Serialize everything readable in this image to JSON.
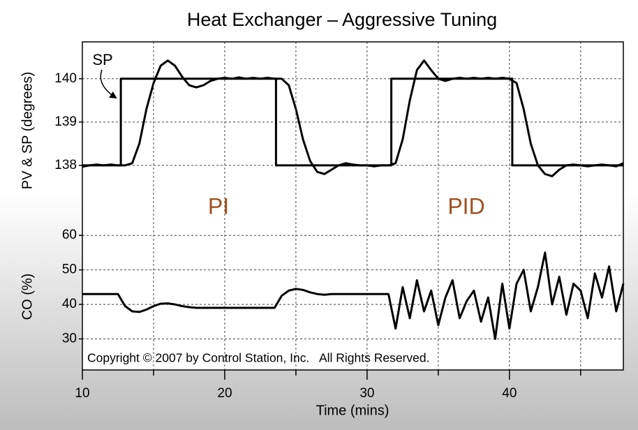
{
  "chart_data": [
    {
      "type": "line",
      "title": "Heat Exchanger – Aggressive Tuning",
      "ylabel": "PV & SP (degrees)",
      "xlim": [
        10,
        48
      ],
      "ylim": [
        137,
        140.85
      ],
      "yticks": [
        138,
        139,
        140
      ],
      "grid": true,
      "x": [
        10,
        10.5,
        11,
        11.5,
        12,
        12.5,
        13,
        13.5,
        14,
        14.5,
        15,
        15.5,
        16,
        16.5,
        17,
        17.5,
        18,
        18.5,
        19,
        19.5,
        20,
        20.5,
        21,
        21.5,
        22,
        22.5,
        23,
        23.5,
        24,
        24.5,
        25,
        25.5,
        26,
        26.5,
        27,
        27.5,
        28,
        28.5,
        29,
        29.5,
        30,
        30.5,
        31,
        31.5,
        32,
        32.5,
        33,
        33.5,
        34,
        34.5,
        35,
        35.5,
        36,
        36.5,
        37,
        37.5,
        38,
        38.5,
        39,
        39.5,
        40,
        40.5,
        41,
        41.5,
        42,
        42.5,
        43,
        43.5,
        44,
        44.5,
        45,
        45.5,
        46,
        46.5,
        47,
        47.5,
        48
      ],
      "series": [
        {
          "color": "#000000",
          "values": [
            137.97,
            138,
            138.02,
            138,
            138.02,
            138,
            138,
            138.05,
            138.5,
            139.3,
            139.9,
            140.3,
            140.42,
            140.3,
            140.05,
            139.85,
            139.8,
            139.85,
            139.95,
            140,
            140.02,
            140,
            140.03,
            140,
            140.02,
            140,
            140.02,
            140,
            140,
            139.85,
            139.3,
            138.6,
            138.1,
            137.85,
            137.8,
            137.9,
            138,
            138.05,
            138.02,
            138,
            138,
            137.98,
            138,
            138,
            138.05,
            138.6,
            139.5,
            140.2,
            140.42,
            140.2,
            140,
            139.95,
            140,
            140.02,
            140,
            140.02,
            140,
            140.02,
            140,
            140.02,
            140,
            139.9,
            139.3,
            138.5,
            138,
            137.8,
            137.75,
            137.9,
            138,
            138.02,
            138,
            137.98,
            138,
            138.02,
            138,
            137.98,
            138.05
          ]
        },
        {
          "color": "#000000",
          "x": [
            10,
            12.7,
            12.7,
            23.6,
            23.6,
            31.7,
            31.7,
            40.2,
            40.2,
            48
          ],
          "values": [
            138,
            138,
            140,
            140,
            138,
            138,
            140,
            140,
            138,
            138
          ]
        }
      ],
      "annotations": [
        "SP",
        "PI",
        "PID"
      ],
      "annotation_color": "#a0501e"
    },
    {
      "type": "line",
      "ylabel": "CO (%)",
      "xlabel": "Time (mins)",
      "xlim": [
        10,
        48
      ],
      "xticks": [
        10,
        20,
        30,
        40
      ],
      "minor_xticks": [
        15,
        25,
        35,
        45
      ],
      "ylim": [
        21,
        65.5
      ],
      "yticks": [
        30,
        40,
        50,
        60
      ],
      "grid": true,
      "copyright": "Copyright © 2007 by Control Station, Inc.   All Rights Reserved.",
      "x": [
        10,
        10.5,
        11,
        11.5,
        12,
        12.5,
        13,
        13.5,
        14,
        14.5,
        15,
        15.5,
        16,
        16.5,
        17,
        17.5,
        18,
        18.5,
        19,
        19.5,
        20,
        20.5,
        21,
        21.5,
        22,
        22.5,
        23,
        23.5,
        24,
        24.5,
        25,
        25.5,
        26,
        26.5,
        27,
        27.5,
        28,
        28.5,
        29,
        29.5,
        30,
        30.5,
        31,
        31.5,
        32,
        32.5,
        33,
        33.5,
        34,
        34.5,
        35,
        35.5,
        36,
        36.5,
        37,
        37.5,
        38,
        38.5,
        39,
        39.5,
        40,
        40.5,
        41,
        41.5,
        42,
        42.5,
        43,
        43.5,
        44,
        44.5,
        45,
        45.5,
        46,
        46.5,
        47,
        47.5,
        48
      ],
      "series": [
        {
          "color": "#000000",
          "values": [
            43,
            43,
            43,
            43,
            43,
            43,
            39.5,
            38,
            37.8,
            38.5,
            39.5,
            40.2,
            40.3,
            40,
            39.5,
            39.2,
            39,
            39,
            39,
            39,
            39,
            39,
            39,
            39,
            39,
            39,
            39,
            39,
            42.5,
            44,
            44.5,
            44.2,
            43.5,
            43,
            42.8,
            43,
            43,
            43,
            43,
            43,
            43,
            43,
            43,
            43,
            33,
            45,
            36,
            47,
            38,
            44,
            34,
            42,
            47,
            36,
            41,
            44,
            35,
            42,
            30,
            46,
            33,
            46,
            50,
            38,
            45,
            55,
            40,
            48,
            37,
            46,
            44,
            36,
            49,
            42,
            51,
            38,
            46
          ]
        }
      ]
    }
  ]
}
